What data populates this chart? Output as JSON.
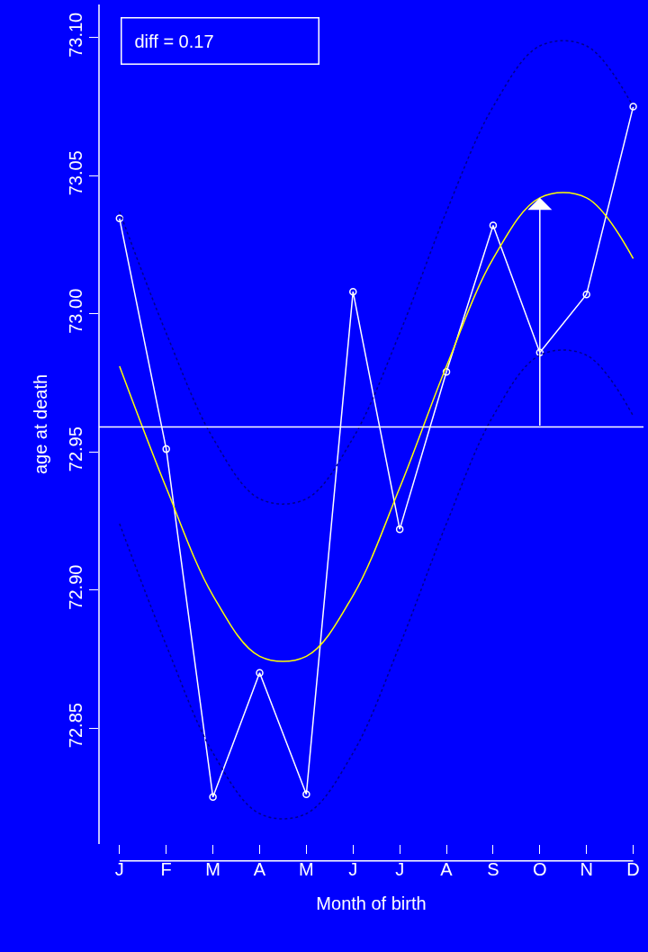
{
  "chart_data": {
    "type": "line",
    "xlabel": "Month of birth",
    "ylabel": "age at death",
    "categories": [
      "J",
      "F",
      "M",
      "A",
      "M",
      "J",
      "J",
      "A",
      "S",
      "O",
      "N",
      "D"
    ],
    "ylim": [
      72.808,
      73.112
    ],
    "yticks": [
      {
        "value": 72.85,
        "label": "72.85"
      },
      {
        "value": 72.9,
        "label": "72.90"
      },
      {
        "value": 72.95,
        "label": "72.95"
      },
      {
        "value": 73.0,
        "label": "73.00"
      },
      {
        "value": 73.05,
        "label": "73.05"
      },
      {
        "value": 73.1,
        "label": "73.10"
      }
    ],
    "grid": false,
    "series": [
      {
        "color": "#ffffff",
        "marker": "circle",
        "values": [
          73.0345,
          72.951,
          72.825,
          72.87,
          72.826,
          73.008,
          72.922,
          72.979,
          73.032,
          72.986,
          73.007,
          73.075
        ]
      },
      {
        "color": "#ffff00",
        "marker": "none",
        "values": [
          72.981,
          72.937,
          72.898,
          72.876,
          72.876,
          72.898,
          72.937,
          72.981,
          73.02,
          73.042,
          73.042,
          73.02
        ]
      },
      {
        "color": "#00008b",
        "marker": "none",
        "line_style": "dotted",
        "values": [
          73.037,
          72.993,
          72.955,
          72.933,
          72.933,
          72.955,
          72.993,
          73.037,
          73.075,
          73.097,
          73.097,
          73.075
        ]
      },
      {
        "color": "#00008b",
        "marker": "none",
        "line_style": "dotted",
        "values": [
          72.924,
          72.88,
          72.841,
          72.819,
          72.819,
          72.841,
          72.88,
          72.924,
          72.963,
          72.985,
          72.985,
          72.963
        ]
      }
    ],
    "ref_lines": [
      {
        "axis": "y",
        "value": 72.959,
        "color": "#ffffff"
      }
    ],
    "annotations": [
      "diff = 0.17"
    ]
  }
}
